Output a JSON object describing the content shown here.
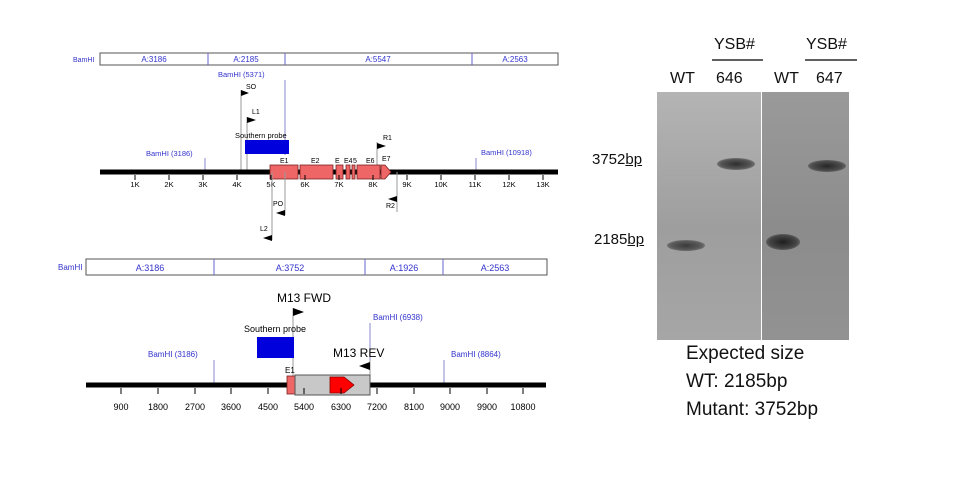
{
  "diagram": {
    "top_map": {
      "left_label": "BamHI",
      "segments": [
        "A:3186",
        "A:2185",
        "A:5547",
        "A:2563"
      ],
      "site_labels": {
        "bamhi_5371": "BamHI (5371)",
        "bamhi_3186": "BamHI (3186)",
        "bamhi_10918": "BamHI (10918)"
      },
      "primers": {
        "so": "SO",
        "l1": "L1",
        "r1": "R1",
        "po": "PO",
        "l2": "L2",
        "r2": "R2"
      },
      "probe_label": "Southern probe",
      "exons": [
        "E1",
        "E2",
        "E",
        "E4",
        "5",
        "E6",
        "E7"
      ],
      "ticks": [
        "1K",
        "2K",
        "3K",
        "4K",
        "5K",
        "6K",
        "7K",
        "8K",
        "9K",
        "10K",
        "11K",
        "12K",
        "13K"
      ]
    },
    "bottom_map": {
      "left_label": "BamHI",
      "segments": [
        "A:3186",
        "A:3752",
        "A:1926",
        "A:2563"
      ],
      "site_labels": {
        "bamhi_3186": "BamHI (3186)",
        "bamhi_6938": "BamHI (6938)",
        "bamhi_8864": "BamHI (8864)"
      },
      "primers": {
        "fwd": "M13 FWD",
        "rev": "M13 REV"
      },
      "probe_label": "Southern probe",
      "exon": "E1",
      "ticks": [
        "900",
        "1800",
        "2700",
        "3600",
        "4500",
        "5400",
        "6300",
        "7200",
        "8100",
        "9000",
        "9900",
        "10800"
      ]
    },
    "colors": {
      "site_blue": "#3333cc",
      "probe_blue": "#0000dd",
      "exon_red": "#ee6666",
      "cassette_red": "#ff0000",
      "cassette_gray": "#c8c8c8"
    }
  },
  "gel": {
    "ysb_label_1": "YSB#",
    "ysb_label_2": "YSB#",
    "lanes": [
      "WT",
      "646",
      "WT",
      "647"
    ],
    "size_high": {
      "num": "3752",
      "unit": "bp"
    },
    "size_low": {
      "num": "2185",
      "unit": "bp"
    }
  },
  "expected": {
    "title": "Expected size",
    "wt": "WT: 2185bp",
    "mutant": "Mutant: 3752bp"
  }
}
